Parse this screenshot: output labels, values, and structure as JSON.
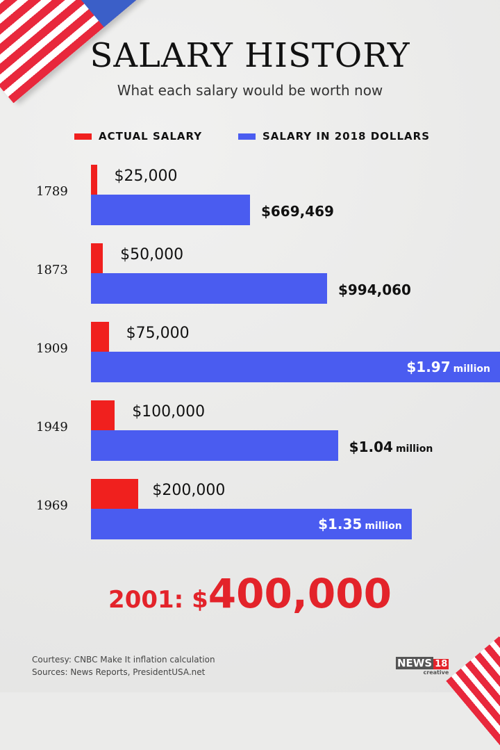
{
  "colors": {
    "actual": "#f0201e",
    "adjusted": "#4a5cf0",
    "total": "#e3232a"
  },
  "chart_data": {
    "type": "bar",
    "orientation": "horizontal",
    "title": "SALARY HISTORY",
    "subtitle": "What each salary would be worth now",
    "categories": [
      "1789",
      "1873",
      "1909",
      "1949",
      "1969"
    ],
    "series": [
      {
        "name": "ACTUAL SALARY",
        "values": [
          25000,
          50000,
          75000,
          100000,
          200000
        ],
        "labels": [
          "$25,000",
          "$50,000",
          "$75,000",
          "$100,000",
          "$200,000"
        ]
      },
      {
        "name": "SALARY IN 2018 DOLLARS",
        "values": [
          669469,
          994060,
          1970000,
          1040000,
          1350000
        ],
        "labels": [
          {
            "num": "$669,469",
            "unit": ""
          },
          {
            "num": "$994,060",
            "unit": ""
          },
          {
            "num": "$1.97",
            "unit": "million"
          },
          {
            "num": "$1.04",
            "unit": "million"
          },
          {
            "num": "$1.35",
            "unit": "million"
          }
        ]
      }
    ],
    "legend_position": "top",
    "grid": false
  },
  "highlight": {
    "prefix": "2001: $",
    "value": "400,000"
  },
  "footer": {
    "courtesy": "Courtesy: CNBC Make It inflation calculation",
    "sources": "Sources: News Reports, PresidentUSA.net"
  },
  "logo": {
    "name": "NEWS",
    "num": "18",
    "sub": "creative"
  }
}
